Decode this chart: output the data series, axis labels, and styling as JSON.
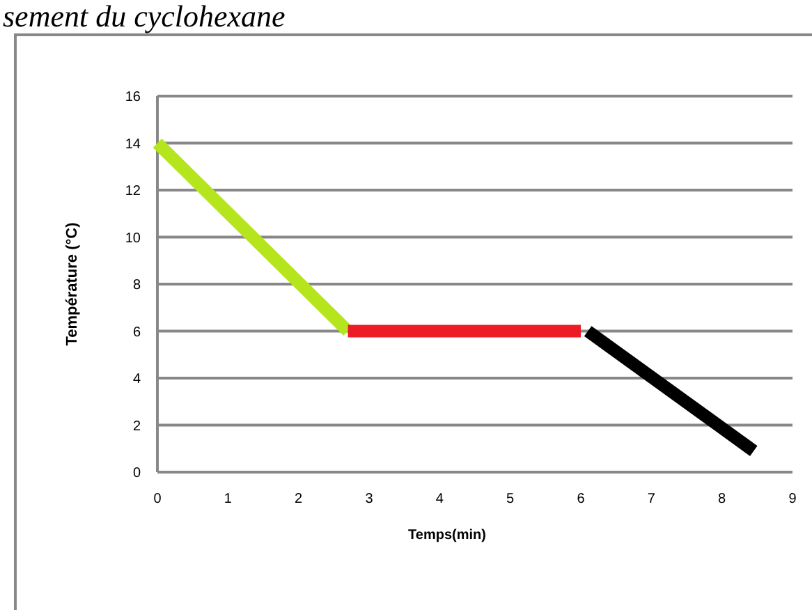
{
  "chart_data": {
    "type": "line",
    "title": "sement du cyclohexane",
    "xlabel": "Temps(min)",
    "ylabel": "Température (°C)",
    "xlim": [
      0,
      9
    ],
    "xticks": [
      0,
      1,
      2,
      3,
      4,
      5,
      6,
      7,
      8,
      9
    ],
    "ylim": [
      0,
      16
    ],
    "yticks": [
      0,
      2,
      4,
      6,
      8,
      10,
      12,
      14,
      16
    ],
    "grid": "y",
    "marker": "none",
    "line_style": "solid",
    "series": [
      {
        "color": "#b5e61d",
        "x": [
          0,
          2.7
        ],
        "values": [
          14,
          6
        ]
      },
      {
        "color": "#ed1c24",
        "x": [
          2.7,
          6
        ],
        "values": [
          6,
          6
        ]
      },
      {
        "color": "#000000",
        "x": [
          6.1,
          8.45
        ],
        "values": [
          6,
          0.9
        ]
      }
    ]
  }
}
